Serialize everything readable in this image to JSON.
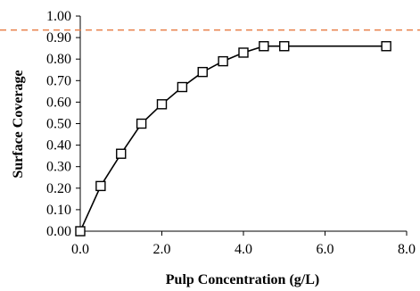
{
  "chart_data": {
    "type": "line",
    "title": "",
    "xlabel": "Pulp Concentration (g/L)",
    "ylabel": "Surface Coverage",
    "xlim": [
      0.0,
      8.0
    ],
    "ylim": [
      0.0,
      1.0
    ],
    "x_ticks": [
      0.0,
      2.0,
      4.0,
      6.0,
      8.0
    ],
    "x_tick_labels": [
      "0.0",
      "2.0",
      "4.0",
      "6.0",
      "8.0"
    ],
    "y_ticks": [
      0.0,
      0.1,
      0.2,
      0.3,
      0.4,
      0.5,
      0.6,
      0.7,
      0.8,
      0.9,
      1.0
    ],
    "y_tick_labels": [
      "0.00",
      "0.10",
      "0.20",
      "0.30",
      "0.40",
      "0.50",
      "0.60",
      "0.70",
      "0.80",
      "0.90",
      "1.00"
    ],
    "grid": false,
    "legend": "none",
    "series": [
      {
        "marker": "open-square",
        "color": "#000000",
        "x": [
          0.0,
          0.5,
          1.0,
          1.5,
          2.0,
          2.5,
          3.0,
          3.5,
          4.0,
          4.5,
          5.0,
          7.5
        ],
        "y": [
          0.0,
          0.21,
          0.36,
          0.5,
          0.59,
          0.67,
          0.74,
          0.79,
          0.83,
          0.86,
          0.86,
          0.86
        ]
      }
    ],
    "reference_lines": [
      {
        "orientation": "horizontal",
        "y": 0.935,
        "style": "dashed",
        "color": "#E8804A"
      }
    ]
  }
}
